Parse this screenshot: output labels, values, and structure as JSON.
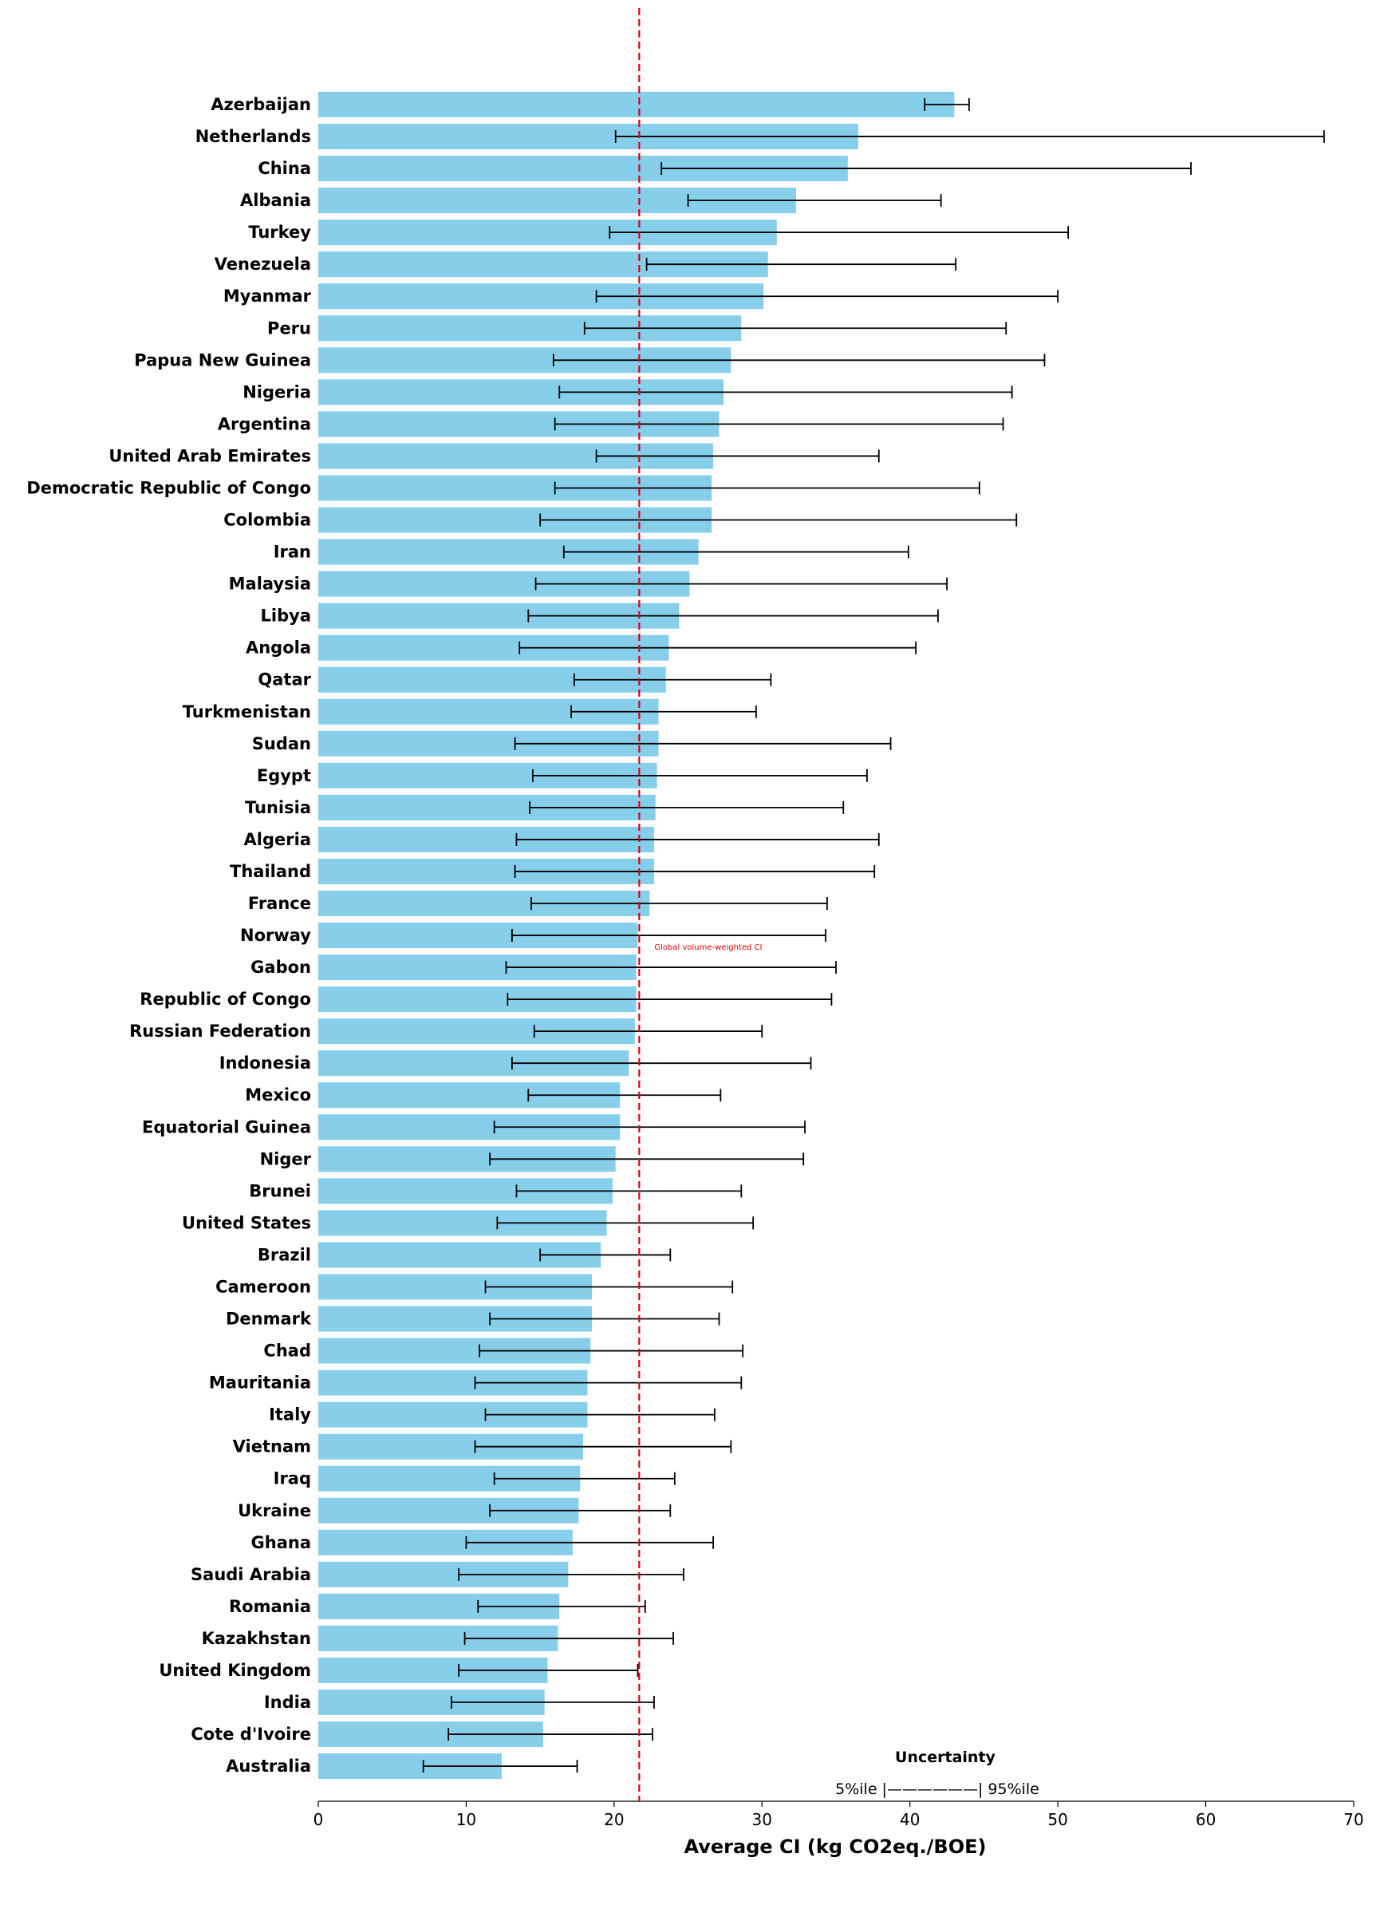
{
  "chart_data": {
    "type": "bar",
    "orientation": "horizontal",
    "title": "",
    "xlabel": "Average CI (kg CO2eq./BOE)",
    "ylabel": "",
    "xlim": [
      0,
      70
    ],
    "xticks": [
      0,
      10,
      20,
      30,
      40,
      50,
      60,
      70
    ],
    "bar_color": "#87CEEB",
    "reference_line": {
      "value": 21.7,
      "label": "Global volume-weighted CI",
      "color": "#e00000"
    },
    "legend": {
      "title": "Uncertainty",
      "text": "5%ile |——————| 95%ile"
    },
    "categories": [
      "Azerbaijan",
      "Netherlands",
      "China",
      "Albania",
      "Turkey",
      "Venezuela",
      "Myanmar",
      "Peru",
      "Papua New Guinea",
      "Nigeria",
      "Argentina",
      "United Arab Emirates",
      "Democratic Republic of Congo",
      "Colombia",
      "Iran",
      "Malaysia",
      "Libya",
      "Angola",
      "Qatar",
      "Turkmenistan",
      "Sudan",
      "Egypt",
      "Tunisia",
      "Algeria",
      "Thailand",
      "France",
      "Norway",
      "Gabon",
      "Republic of Congo",
      "Russian Federation",
      "Indonesia",
      "Mexico",
      "Equatorial Guinea",
      "Niger",
      "Brunei",
      "United States",
      "Brazil",
      "Cameroon",
      "Denmark",
      "Chad",
      "Mauritania",
      "Italy",
      "Vietnam",
      "Iraq",
      "Ukraine",
      "Ghana",
      "Saudi Arabia",
      "Romania",
      "Kazakhstan",
      "United Kingdom",
      "India",
      "Cote d'Ivoire",
      "Australia"
    ],
    "values": [
      43.0,
      36.5,
      35.8,
      32.3,
      31.0,
      30.4,
      30.1,
      28.6,
      27.9,
      27.4,
      27.1,
      26.7,
      26.6,
      26.6,
      25.7,
      25.1,
      24.4,
      23.7,
      23.5,
      23.0,
      23.0,
      22.9,
      22.8,
      22.7,
      22.7,
      22.4,
      21.6,
      21.5,
      21.5,
      21.4,
      21.0,
      20.4,
      20.4,
      20.1,
      19.9,
      19.5,
      19.1,
      18.5,
      18.5,
      18.4,
      18.2,
      18.2,
      17.9,
      17.7,
      17.6,
      17.2,
      16.9,
      16.3,
      16.2,
      15.5,
      15.3,
      15.2,
      12.4
    ],
    "p5": [
      41.0,
      20.1,
      23.2,
      25.0,
      19.7,
      22.2,
      18.8,
      18.0,
      15.9,
      16.3,
      16.0,
      18.8,
      16.0,
      15.0,
      16.6,
      14.7,
      14.2,
      13.6,
      17.3,
      17.1,
      13.3,
      14.5,
      14.3,
      13.4,
      13.3,
      14.4,
      13.1,
      12.7,
      12.8,
      14.6,
      13.1,
      14.2,
      11.9,
      11.6,
      13.4,
      12.1,
      15.0,
      11.3,
      11.6,
      10.9,
      10.6,
      11.3,
      10.6,
      11.9,
      11.6,
      10.0,
      9.5,
      10.8,
      9.9,
      9.5,
      9.0,
      8.8,
      7.1
    ],
    "p95": [
      44.0,
      68.0,
      59.0,
      42.1,
      50.7,
      43.1,
      50.0,
      46.5,
      49.1,
      46.9,
      46.3,
      37.9,
      44.7,
      47.2,
      39.9,
      42.5,
      41.9,
      40.4,
      30.6,
      29.6,
      38.7,
      37.1,
      35.5,
      37.9,
      37.6,
      34.4,
      34.3,
      35.0,
      34.7,
      30.0,
      33.3,
      27.2,
      32.9,
      32.8,
      28.6,
      29.4,
      23.8,
      28.0,
      27.1,
      28.7,
      28.6,
      26.8,
      27.9,
      24.1,
      23.8,
      26.7,
      24.7,
      22.1,
      24.0,
      21.6,
      22.7,
      22.6,
      17.5
    ]
  }
}
